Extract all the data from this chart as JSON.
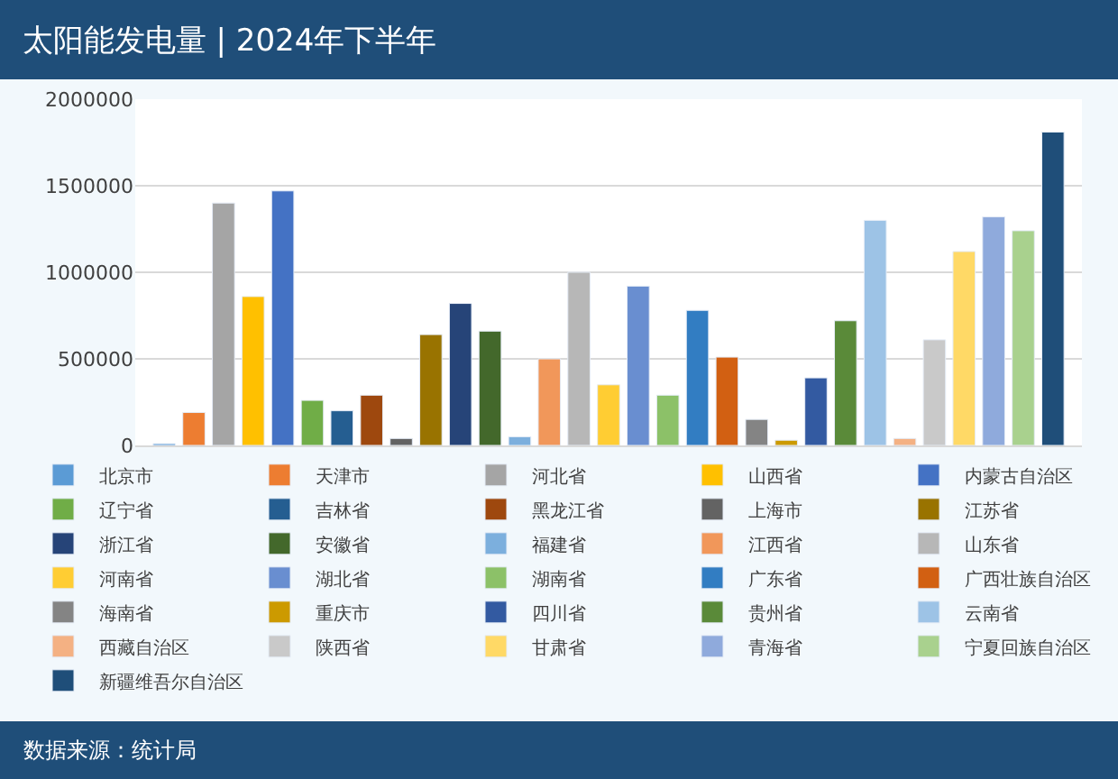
{
  "chart_data": {
    "type": "bar",
    "title": "太阳能发电量 | 2024年下半年",
    "categories": [
      null
    ],
    "series": [
      {
        "name": "北京市",
        "color": "#5b9bd5",
        "values": [
          10000
        ]
      },
      {
        "name": "天津市",
        "color": "#ed7d31",
        "values": [
          190000
        ]
      },
      {
        "name": "河北省",
        "color": "#a5a5a5",
        "values": [
          1400000
        ]
      },
      {
        "name": "山西省",
        "color": "#ffc000",
        "values": [
          860000
        ]
      },
      {
        "name": "内蒙古自治区",
        "color": "#4472c4",
        "values": [
          1470000
        ]
      },
      {
        "name": "辽宁省",
        "color": "#70ad47",
        "values": [
          260000
        ]
      },
      {
        "name": "吉林省",
        "color": "#255e91",
        "values": [
          200000
        ]
      },
      {
        "name": "黑龙江省",
        "color": "#9e480e",
        "values": [
          290000
        ]
      },
      {
        "name": "上海市",
        "color": "#636363",
        "values": [
          40000
        ]
      },
      {
        "name": "江苏省",
        "color": "#997300",
        "values": [
          640000
        ]
      },
      {
        "name": "浙江省",
        "color": "#264478",
        "values": [
          820000
        ]
      },
      {
        "name": "安徽省",
        "color": "#43682b",
        "values": [
          660000
        ]
      },
      {
        "name": "福建省",
        "color": "#7cafdd",
        "values": [
          50000
        ]
      },
      {
        "name": "江西省",
        "color": "#f1975a",
        "values": [
          500000
        ]
      },
      {
        "name": "山东省",
        "color": "#b7b7b7",
        "values": [
          1000000
        ]
      },
      {
        "name": "河南省",
        "color": "#ffcd33",
        "values": [
          350000
        ]
      },
      {
        "name": "湖北省",
        "color": "#698ed0",
        "values": [
          920000
        ]
      },
      {
        "name": "湖南省",
        "color": "#8cc168",
        "values": [
          290000
        ]
      },
      {
        "name": "广东省",
        "color": "#327dc2",
        "values": [
          780000
        ]
      },
      {
        "name": "广西壮族自治区",
        "color": "#d26012",
        "values": [
          510000
        ]
      },
      {
        "name": "海南省",
        "color": "#848484",
        "values": [
          150000
        ]
      },
      {
        "name": "重庆市",
        "color": "#cc9a00",
        "values": [
          30000
        ]
      },
      {
        "name": "四川省",
        "color": "#335aa1",
        "values": [
          390000
        ]
      },
      {
        "name": "贵州省",
        "color": "#5a8a39",
        "values": [
          720000
        ]
      },
      {
        "name": "云南省",
        "color": "#9dc3e6",
        "values": [
          1300000
        ]
      },
      {
        "name": "西藏自治区",
        "color": "#f4b183",
        "values": [
          40000
        ]
      },
      {
        "name": "陕西省",
        "color": "#c9c9c9",
        "values": [
          610000
        ]
      },
      {
        "name": "甘肃省",
        "color": "#ffd966",
        "values": [
          1120000
        ]
      },
      {
        "name": "青海省",
        "color": "#8faadc",
        "values": [
          1320000
        ]
      },
      {
        "name": "宁夏回族自治区",
        "color": "#a9d18e",
        "values": [
          1240000
        ]
      },
      {
        "name": "新疆维吾尔自治区",
        "color": "#1f4e79",
        "values": [
          1810000
        ]
      }
    ],
    "ylim": [
      0,
      2000000
    ],
    "yticks": [
      0,
      500000,
      1000000,
      1500000,
      2000000
    ],
    "grid": "y",
    "legend": "bottom",
    "tick_labels": "y",
    "annotations": [
      "数据来源：统计局"
    ]
  }
}
